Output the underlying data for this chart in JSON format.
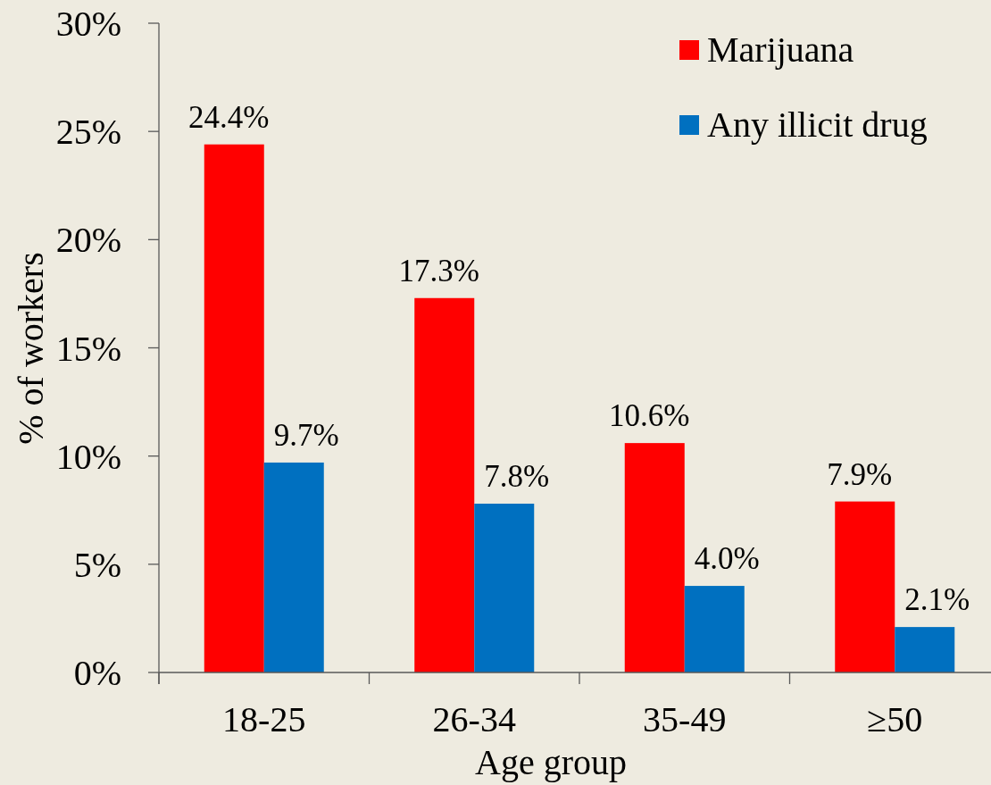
{
  "chart_data": {
    "type": "bar",
    "xlabel": "Age group",
    "ylabel": "% of workers",
    "categories": [
      "18-25",
      "26-34",
      "35-49",
      "≥50"
    ],
    "series": [
      {
        "name": "Marijuana",
        "color": "#ff0000",
        "values": [
          24.4,
          17.3,
          10.6,
          7.9
        ],
        "value_labels": [
          "24.4%",
          "17.3%",
          "10.6%",
          "7.9%"
        ]
      },
      {
        "name": "Any illicit drug",
        "color": "#0070c0",
        "values": [
          9.7,
          7.8,
          4.0,
          2.1
        ],
        "value_labels": [
          "9.7%",
          "7.8%",
          "4.0%",
          "2.1%"
        ]
      }
    ],
    "ylim": [
      0,
      30
    ],
    "yticks": [
      {
        "value": 0,
        "label": "0%"
      },
      {
        "value": 5,
        "label": "5%"
      },
      {
        "value": 10,
        "label": "10%"
      },
      {
        "value": 15,
        "label": "15%"
      },
      {
        "value": 20,
        "label": "20%"
      },
      {
        "value": 25,
        "label": "25%"
      },
      {
        "value": 30,
        "label": "30%"
      }
    ],
    "legend": "top right"
  }
}
